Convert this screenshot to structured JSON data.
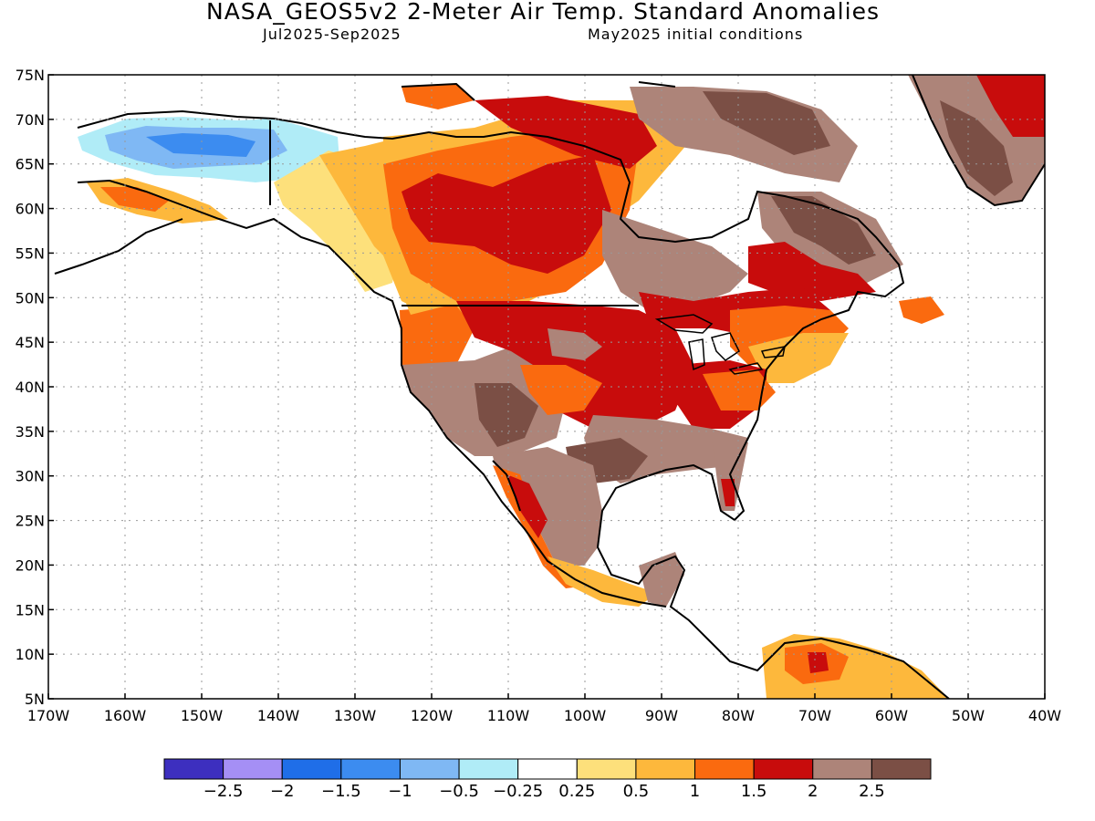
{
  "title": "NASA_GEOS5v2 2-Meter Air Temp. Standard Anomalies",
  "subtitle_left": "Jul2025-Sep2025",
  "subtitle_right": "May2025 initial conditions",
  "map": {
    "lon_range": [
      -170,
      -40
    ],
    "lat_range": [
      5,
      75
    ],
    "lat_ticks": [
      "75N",
      "70N",
      "65N",
      "60N",
      "55N",
      "50N",
      "45N",
      "40N",
      "35N",
      "30N",
      "25N",
      "20N",
      "15N",
      "10N",
      "5N"
    ],
    "lon_ticks": [
      "170W",
      "160W",
      "150W",
      "140W",
      "130W",
      "120W",
      "110W",
      "100W",
      "90W",
      "80W",
      "70W",
      "60W",
      "50W",
      "40W"
    ],
    "grid": "dotted"
  },
  "colorbar": {
    "labels": [
      "-2.5",
      "-2",
      "-1.5",
      "-1",
      "-0.5",
      "-0.25",
      "0.25",
      "0.5",
      "1",
      "1.5",
      "2",
      "2.5"
    ],
    "colors": [
      "#3d2fbf",
      "#a58ff5",
      "#1f6ee8",
      "#3c8cf0",
      "#7fb8f4",
      "#b0ecf7",
      "#ffffff",
      "#fde07b",
      "#fdb83c",
      "#fa6a0f",
      "#c80c0c",
      "#ad8479",
      "#7b4f45"
    ]
  }
}
